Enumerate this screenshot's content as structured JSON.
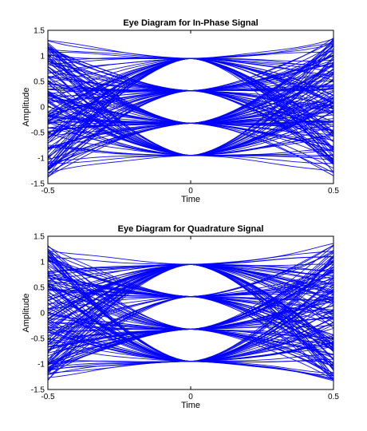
{
  "chart_data": [
    {
      "type": "line",
      "title": "Eye Diagram for In-Phase Signal",
      "xlabel": "Time",
      "ylabel": "Amplitude",
      "xlim": [
        -0.5,
        0.5
      ],
      "ylim": [
        -1.5,
        1.5
      ],
      "xticks": [
        -0.5,
        0,
        0.5
      ],
      "xtick_labels": [
        "-0.5",
        "0",
        "0.5"
      ],
      "yticks": [
        -1.5,
        -1,
        -0.5,
        0,
        0.5,
        1,
        1.5
      ],
      "ytick_labels": [
        "-1.5",
        "-1",
        "-0.5",
        "0",
        "0.5",
        "1",
        "1.5"
      ],
      "grid": false,
      "series_color": "#0000ff",
      "symbol_levels_at_t0": [
        -0.95,
        -0.32,
        0.32,
        0.95
      ],
      "edge_amplitude_range": [
        -1.35,
        1.35
      ]
    },
    {
      "type": "line",
      "title": "Eye Diagram for Quadrature Signal",
      "xlabel": "Time",
      "ylabel": "Amplitude",
      "xlim": [
        -0.5,
        0.5
      ],
      "ylim": [
        -1.5,
        1.5
      ],
      "xticks": [
        -0.5,
        0,
        0.5
      ],
      "xtick_labels": [
        "-0.5",
        "0",
        "0.5"
      ],
      "yticks": [
        -1.5,
        -1,
        -0.5,
        0,
        0.5,
        1,
        1.5
      ],
      "ytick_labels": [
        "-1.5",
        "-1",
        "-0.5",
        "0",
        "0.5",
        "1",
        "1.5"
      ],
      "grid": false,
      "series_color": "#0000ff",
      "symbol_levels_at_t0": [
        -0.95,
        -0.32,
        0.32,
        0.95
      ],
      "edge_amplitude_range": [
        -1.35,
        1.35
      ]
    }
  ]
}
